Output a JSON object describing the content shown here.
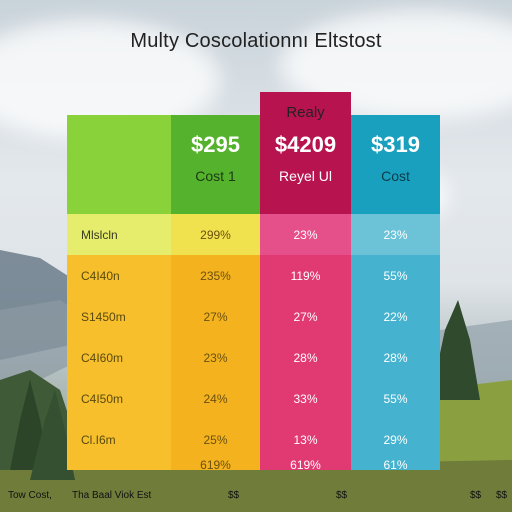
{
  "title": "Multy Coscolationnı Eltstost",
  "plans": [
    {
      "tag": "",
      "price": "",
      "sub": ""
    },
    {
      "tag": "",
      "price": "$295",
      "sub": "Cost 1"
    },
    {
      "tag": "Realy",
      "price": "$4209",
      "sub": "Reyel Ul"
    },
    {
      "tag": "",
      "price": "$319",
      "sub": "Cost"
    }
  ],
  "rows": [
    [
      "Mlslcln",
      "299%",
      "23%",
      "23%"
    ],
    [
      "C4I40n",
      "235%",
      "119%",
      "55%"
    ],
    [
      "S1450m",
      "27%",
      "27%",
      "22%"
    ],
    [
      "C4I60m",
      "23%",
      "28%",
      "28%"
    ],
    [
      "C4I50m",
      "24%",
      "33%",
      "55%"
    ],
    [
      "Cl.I6m",
      "25%",
      "13%",
      "29%"
    ],
    [
      "",
      "619%",
      "619%",
      "61%"
    ]
  ],
  "footer": [
    "Tow Cost,",
    "Tha Baal Viok Est",
    "$$",
    "$$",
    "$$",
    "$$"
  ],
  "colors": {
    "green_head": "#89d23a",
    "green_head_dark": "#54b22c",
    "yellow": "#f6bf2b",
    "yellow_light": "#e6ec6c",
    "pink": "#e13a72",
    "pink_head": "#b7144f",
    "teal": "#45b3cf",
    "teal_head": "#1aa0bf"
  }
}
